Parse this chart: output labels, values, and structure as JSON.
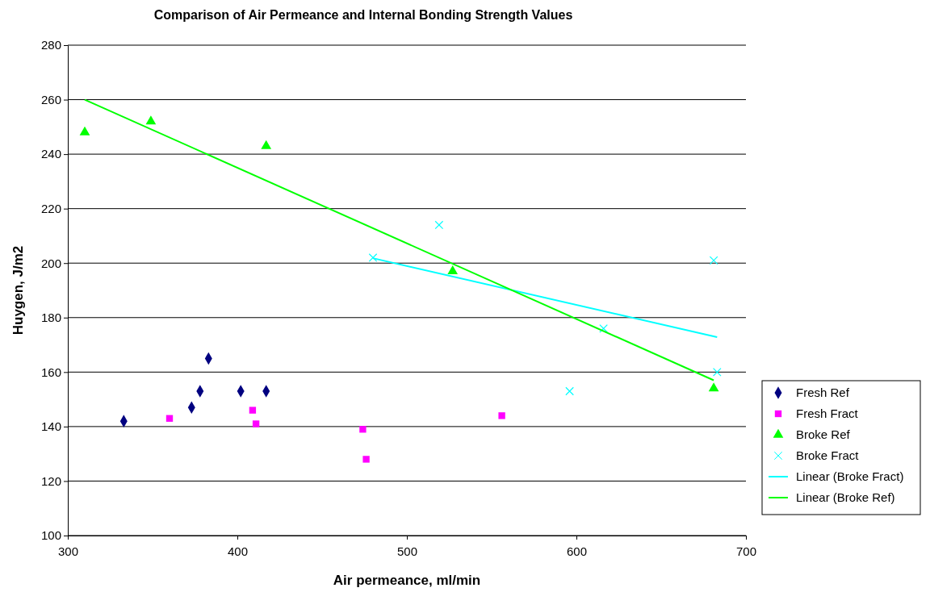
{
  "chart_data": {
    "type": "scatter",
    "title": "Comparison of Air Permeance and Internal Bonding Strength Values",
    "xlabel": "Air permeance, ml/min",
    "ylabel": "Huygen, J/m2",
    "xlim": [
      300,
      700
    ],
    "xticks": [
      300,
      400,
      500,
      600,
      700
    ],
    "ylim": [
      100,
      280
    ],
    "yticks": [
      100,
      120,
      140,
      160,
      180,
      200,
      220,
      240,
      260,
      280
    ],
    "grid": "y",
    "legend": "right",
    "series": [
      {
        "name": "Fresh Ref",
        "color": "#000080",
        "marker": "diamond",
        "x": [
          333,
          373,
          378,
          383,
          402,
          417
        ],
        "values": [
          142,
          147,
          153,
          165,
          153,
          153
        ]
      },
      {
        "name": "Fresh Fract",
        "color": "#ff00ff",
        "marker": "square",
        "x": [
          360,
          409,
          411,
          474,
          476,
          556
        ],
        "values": [
          143,
          146,
          141,
          139,
          128,
          144
        ]
      },
      {
        "name": "Broke Ref",
        "color": "#00ff00",
        "marker": "triangle",
        "x": [
          310,
          349,
          417,
          527,
          681
        ],
        "values": [
          248,
          252,
          243,
          197,
          154
        ]
      },
      {
        "name": "Broke Fract",
        "color": "#00ffff",
        "marker": "cross",
        "x": [
          480,
          519,
          596,
          616,
          681,
          683
        ],
        "values": [
          202,
          214,
          153,
          176,
          201,
          160
        ]
      },
      {
        "name": "Linear (Broke Fract)",
        "type": "line",
        "color": "#00ffff",
        "marker": "none",
        "x": [
          480,
          683
        ],
        "values": [
          201.8,
          172.8
        ]
      },
      {
        "name": "Linear (Broke Ref)",
        "type": "line",
        "color": "#00ff00",
        "marker": "none",
        "x": [
          310,
          681
        ],
        "values": [
          260,
          157
        ]
      }
    ]
  }
}
